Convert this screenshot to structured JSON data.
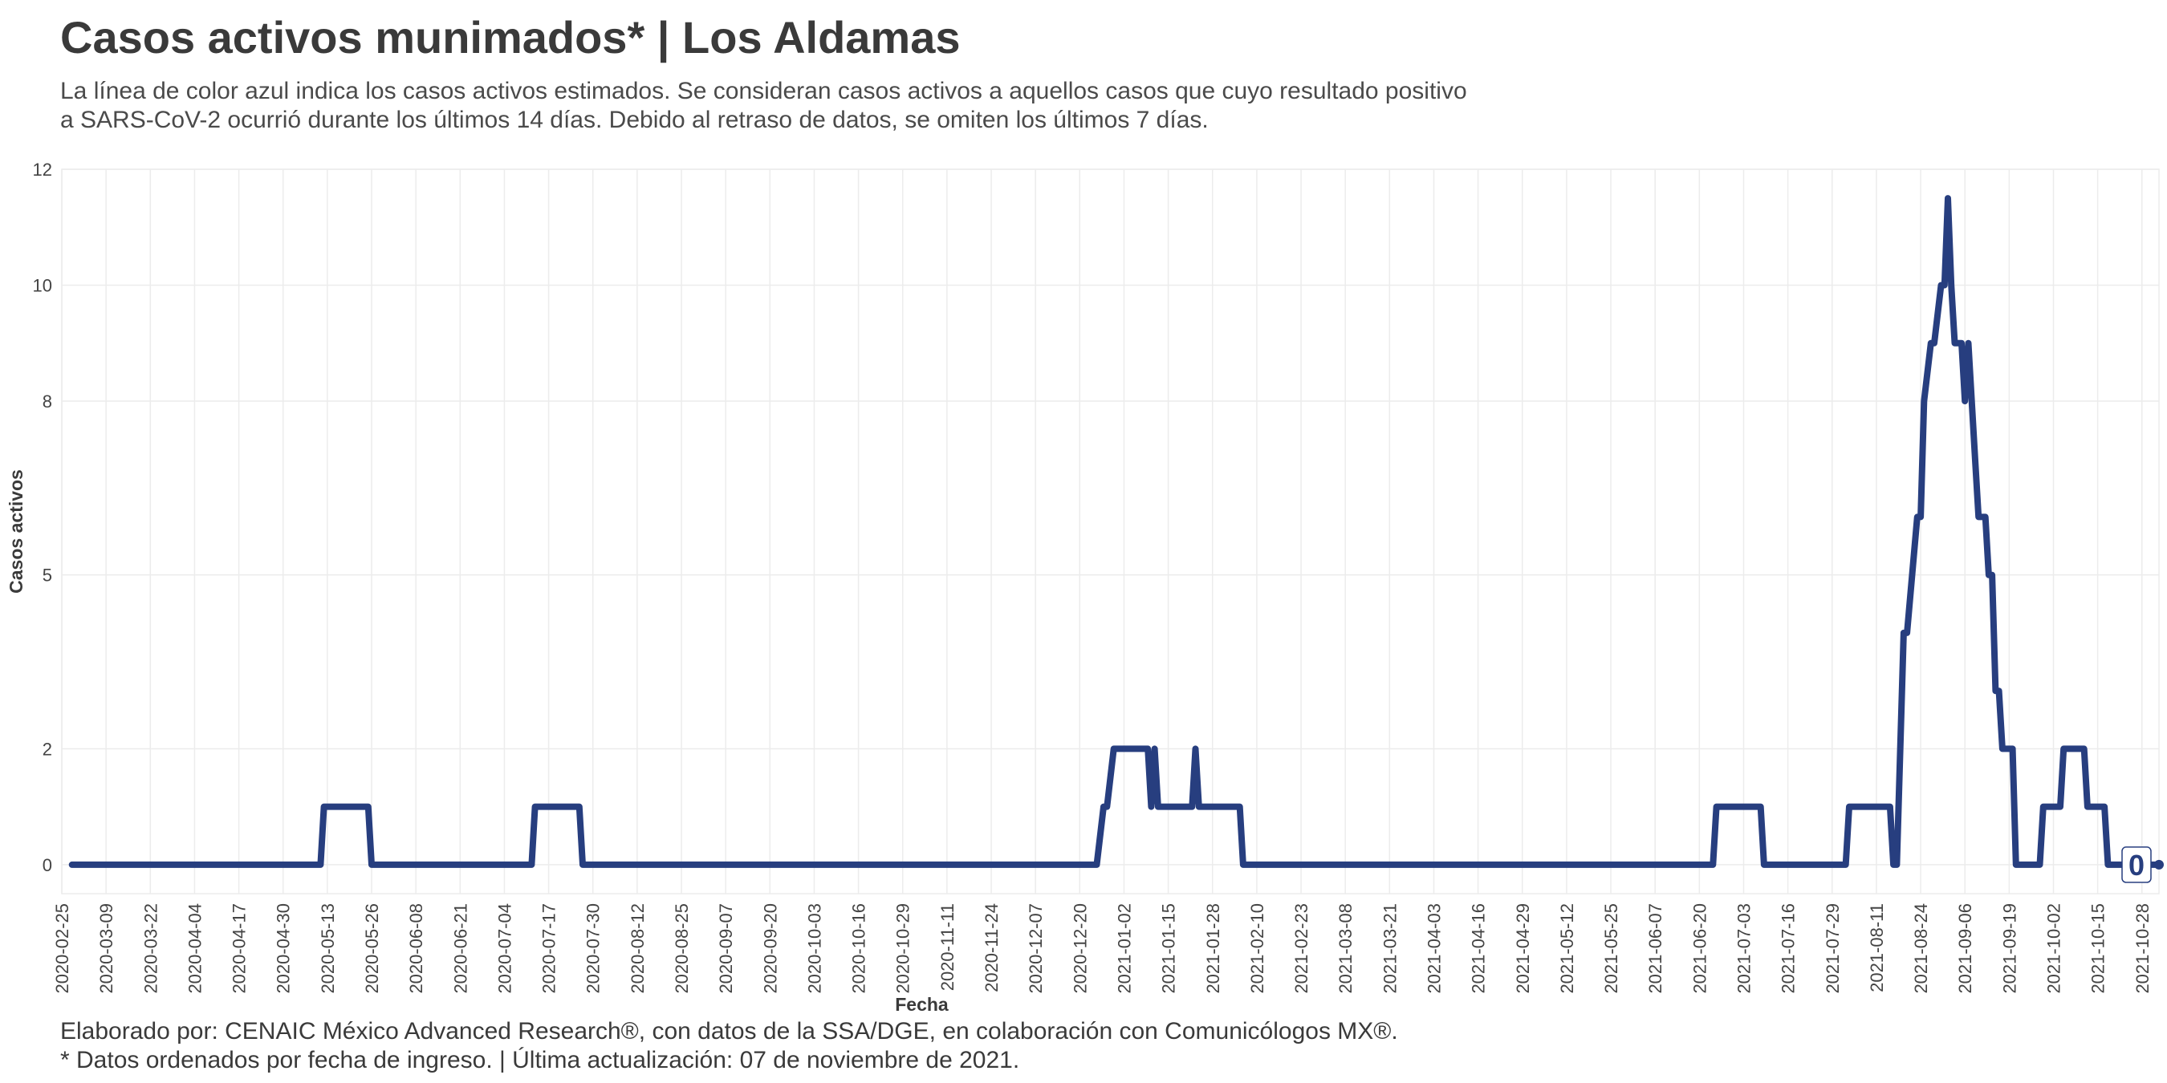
{
  "title": "Casos activos munimados* | Los Aldamas",
  "subtitle_line1": "La línea de color azul indica los casos activos estimados. Se consideran casos activos a aquellos casos que cuyo resultado positivo",
  "subtitle_line2": "a SARS-CoV-2 ocurrió durante los últimos 14 días. Debido al retraso de datos, se omiten los últimos 7 días.",
  "footer_line1": "Elaborado por: CENAIC México Advanced Research®, con datos de la SSA/DGE, en colaboración con Comunicólogos MX®.",
  "footer_line2": "* Datos ordenados por fecha de ingreso. | Última actualización: 07 de noviembre de 2021.",
  "colors": {
    "line": "#273e7f",
    "grid": "#ececec",
    "text": "#3d3d3d"
  },
  "chart_data": {
    "type": "line",
    "xlabel": "Fecha",
    "ylabel": "Casos activos",
    "x_range": [
      "2020-02-25",
      "2021-11-02"
    ],
    "ylim": [
      -0.5,
      12
    ],
    "y_ticks": [
      0,
      2,
      5,
      8,
      10,
      12
    ],
    "x_ticks": [
      "2020-02-25",
      "2020-03-09",
      "2020-03-22",
      "2020-04-04",
      "2020-04-17",
      "2020-04-30",
      "2020-05-13",
      "2020-05-26",
      "2020-06-08",
      "2020-06-21",
      "2020-07-04",
      "2020-07-17",
      "2020-07-30",
      "2020-08-12",
      "2020-08-25",
      "2020-09-07",
      "2020-09-20",
      "2020-10-03",
      "2020-10-16",
      "2020-10-29",
      "2020-11-11",
      "2020-11-24",
      "2020-12-07",
      "2020-12-20",
      "2021-01-02",
      "2021-01-15",
      "2021-01-28",
      "2021-02-10",
      "2021-02-23",
      "2021-03-08",
      "2021-03-21",
      "2021-04-03",
      "2021-04-16",
      "2021-04-29",
      "2021-05-12",
      "2021-05-25",
      "2021-06-07",
      "2021-06-20",
      "2021-07-03",
      "2021-07-16",
      "2021-07-29",
      "2021-08-11",
      "2021-08-24",
      "2021-09-06",
      "2021-09-19",
      "2021-10-02",
      "2021-10-15",
      "2021-10-28"
    ],
    "grid": true,
    "legend": "none",
    "end_label": "0",
    "series": [
      {
        "points": [
          [
            "2020-02-28",
            0
          ],
          [
            "2020-05-11",
            0
          ],
          [
            "2020-05-12",
            1
          ],
          [
            "2020-05-25",
            1
          ],
          [
            "2020-05-26",
            0
          ],
          [
            "2020-07-12",
            0
          ],
          [
            "2020-07-13",
            1
          ],
          [
            "2020-07-26",
            1
          ],
          [
            "2020-07-27",
            0
          ],
          [
            "2020-12-25",
            0
          ],
          [
            "2020-12-27",
            1
          ],
          [
            "2020-12-28",
            1
          ],
          [
            "2020-12-30",
            2
          ],
          [
            "2021-01-09",
            2
          ],
          [
            "2021-01-10",
            1
          ],
          [
            "2021-01-11",
            2
          ],
          [
            "2021-01-12",
            1
          ],
          [
            "2021-01-22",
            1
          ],
          [
            "2021-01-23",
            2
          ],
          [
            "2021-01-24",
            1
          ],
          [
            "2021-02-05",
            1
          ],
          [
            "2021-02-06",
            0
          ],
          [
            "2021-06-24",
            0
          ],
          [
            "2021-06-25",
            1
          ],
          [
            "2021-07-08",
            1
          ],
          [
            "2021-07-09",
            0
          ],
          [
            "2021-08-02",
            0
          ],
          [
            "2021-08-03",
            1
          ],
          [
            "2021-08-15",
            1
          ],
          [
            "2021-08-16",
            0
          ],
          [
            "2021-08-17",
            0
          ],
          [
            "2021-08-19",
            4
          ],
          [
            "2021-08-20",
            4
          ],
          [
            "2021-08-23",
            6
          ],
          [
            "2021-08-24",
            6
          ],
          [
            "2021-08-25",
            8
          ],
          [
            "2021-08-27",
            9
          ],
          [
            "2021-08-28",
            9
          ],
          [
            "2021-08-30",
            10
          ],
          [
            "2021-08-31",
            10
          ],
          [
            "2021-09-01",
            11.5
          ],
          [
            "2021-09-02",
            10
          ],
          [
            "2021-09-03",
            9
          ],
          [
            "2021-09-05",
            9
          ],
          [
            "2021-09-06",
            8
          ],
          [
            "2021-09-07",
            9
          ],
          [
            "2021-09-09",
            7
          ],
          [
            "2021-09-10",
            6
          ],
          [
            "2021-09-12",
            6
          ],
          [
            "2021-09-13",
            5
          ],
          [
            "2021-09-14",
            5
          ],
          [
            "2021-09-15",
            3
          ],
          [
            "2021-09-16",
            3
          ],
          [
            "2021-09-17",
            2
          ],
          [
            "2021-09-20",
            2
          ],
          [
            "2021-09-21",
            0
          ],
          [
            "2021-09-28",
            0
          ],
          [
            "2021-09-29",
            1
          ],
          [
            "2021-10-04",
            1
          ],
          [
            "2021-10-05",
            2
          ],
          [
            "2021-10-11",
            2
          ],
          [
            "2021-10-12",
            1
          ],
          [
            "2021-10-17",
            1
          ],
          [
            "2021-10-18",
            0
          ],
          [
            "2021-11-02",
            0
          ]
        ]
      }
    ]
  }
}
